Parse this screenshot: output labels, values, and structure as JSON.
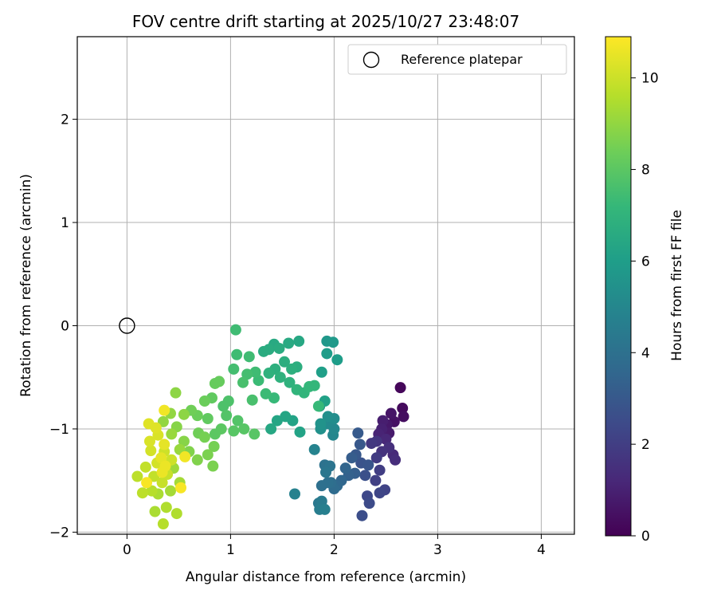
{
  "chart_data": {
    "type": "scatter",
    "title": "FOV centre drift starting at 2025/10/27 23:48:07",
    "xlabel": "Angular distance from reference (arcmin)",
    "ylabel": "Rotation from reference (arcmin)",
    "xlim": [
      -0.48,
      4.32
    ],
    "ylim": [
      -2.02,
      2.8
    ],
    "xticks": [
      0,
      1,
      2,
      3,
      4
    ],
    "xtick_labels": [
      "0",
      "1",
      "2",
      "3",
      "4"
    ],
    "yticks": [
      -2,
      -1,
      0,
      1,
      2
    ],
    "ytick_labels": [
      "−2",
      "−1",
      "0",
      "1",
      "2"
    ],
    "grid": true,
    "legend": {
      "placement": "top-right",
      "entries": [
        {
          "label": "Reference platepar",
          "marker": "open-circle"
        }
      ]
    },
    "reference_point": {
      "x": 0,
      "y": 0
    },
    "colorbar": {
      "label": "Hours from first FF file",
      "colormap": "viridis",
      "range": [
        0,
        10.9
      ],
      "ticks": [
        0,
        2,
        4,
        6,
        8,
        10
      ]
    },
    "colormap_stops": [
      "#440154",
      "#482878",
      "#3e4989",
      "#31688e",
      "#26828e",
      "#1f9e89",
      "#35b779",
      "#6ece58",
      "#b5de2b",
      "#fde725"
    ],
    "series": [
      {
        "color_by": "hours",
        "points": [
          [
            2.64,
            -0.6,
            0.2
          ],
          [
            2.66,
            -0.8,
            0.3
          ],
          [
            2.67,
            -0.88,
            0.4
          ],
          [
            2.58,
            -0.93,
            0.5
          ],
          [
            2.55,
            -0.85,
            0.6
          ],
          [
            2.51,
            -0.96,
            0.7
          ],
          [
            2.53,
            -1.04,
            0.8
          ],
          [
            2.47,
            -0.92,
            0.9
          ],
          [
            2.46,
            -1.0,
            1.0
          ],
          [
            2.43,
            -1.05,
            1.1
          ],
          [
            2.5,
            -1.1,
            1.2
          ],
          [
            2.57,
            -1.25,
            1.3
          ],
          [
            2.59,
            -1.3,
            1.4
          ],
          [
            2.53,
            -1.18,
            1.5
          ],
          [
            2.46,
            -1.22,
            1.6
          ],
          [
            2.41,
            -1.12,
            1.7
          ],
          [
            2.36,
            -1.14,
            1.8
          ],
          [
            2.41,
            -1.28,
            1.9
          ],
          [
            2.44,
            -1.4,
            2.0
          ],
          [
            2.4,
            -1.5,
            2.1
          ],
          [
            2.49,
            -1.59,
            2.2
          ],
          [
            2.44,
            -1.62,
            2.3
          ],
          [
            2.32,
            -1.65,
            2.4
          ],
          [
            2.34,
            -1.72,
            2.5
          ],
          [
            2.27,
            -1.84,
            2.6
          ],
          [
            2.3,
            -1.45,
            2.7
          ],
          [
            2.26,
            -1.33,
            2.8
          ],
          [
            2.33,
            -1.35,
            2.9
          ],
          [
            2.25,
            -1.15,
            3.0
          ],
          [
            2.21,
            -1.25,
            3.0
          ],
          [
            2.23,
            -1.04,
            3.1
          ],
          [
            2.17,
            -1.28,
            3.2
          ],
          [
            2.2,
            -1.43,
            3.3
          ],
          [
            2.14,
            -1.45,
            3.4
          ],
          [
            2.11,
            -1.38,
            3.5
          ],
          [
            2.07,
            -1.5,
            3.6
          ],
          [
            2.03,
            -1.55,
            3.7
          ],
          [
            2.0,
            -1.58,
            3.8
          ],
          [
            1.97,
            -1.52,
            3.9
          ],
          [
            1.94,
            -1.52,
            4.0
          ],
          [
            1.88,
            -1.55,
            4.0
          ],
          [
            1.91,
            -1.35,
            4.1
          ],
          [
            1.96,
            -1.36,
            4.2
          ],
          [
            1.92,
            -1.42,
            4.3
          ],
          [
            1.85,
            -1.72,
            4.4
          ],
          [
            1.88,
            -1.7,
            4.5
          ],
          [
            1.86,
            -1.78,
            4.6
          ],
          [
            1.91,
            -1.78,
            4.7
          ],
          [
            1.62,
            -1.63,
            4.8
          ],
          [
            1.81,
            -1.2,
            4.9
          ],
          [
            1.99,
            -1.06,
            5.0
          ],
          [
            2.0,
            -1.0,
            5.1
          ],
          [
            1.93,
            -0.95,
            5.2
          ],
          [
            2.0,
            -0.9,
            5.3
          ],
          [
            1.94,
            -0.88,
            5.4
          ],
          [
            1.87,
            -1.0,
            5.5
          ],
          [
            1.87,
            -0.95,
            5.6
          ],
          [
            1.86,
            -0.78,
            5.7
          ],
          [
            1.93,
            -0.15,
            5.8
          ],
          [
            1.99,
            -0.16,
            5.9
          ],
          [
            1.93,
            -0.27,
            6.0
          ],
          [
            2.03,
            -0.33,
            6.0
          ],
          [
            1.88,
            -0.45,
            6.1
          ],
          [
            1.91,
            -0.73,
            6.2
          ],
          [
            1.67,
            -1.03,
            6.3
          ],
          [
            1.6,
            -0.92,
            6.3
          ],
          [
            1.53,
            -0.88,
            6.4
          ],
          [
            1.45,
            -0.92,
            6.4
          ],
          [
            1.39,
            -1.0,
            6.5
          ],
          [
            1.66,
            -0.15,
            6.5
          ],
          [
            1.42,
            -0.18,
            6.6
          ],
          [
            1.56,
            -0.17,
            6.6
          ],
          [
            1.37,
            -0.23,
            6.7
          ],
          [
            1.32,
            -0.25,
            6.7
          ],
          [
            1.47,
            -0.22,
            6.7
          ],
          [
            1.52,
            -0.35,
            6.8
          ],
          [
            1.64,
            -0.4,
            6.8
          ],
          [
            1.59,
            -0.42,
            6.9
          ],
          [
            1.43,
            -0.42,
            6.9
          ],
          [
            1.37,
            -0.46,
            7.0
          ],
          [
            1.48,
            -0.5,
            7.0
          ],
          [
            1.57,
            -0.55,
            7.0
          ],
          [
            1.64,
            -0.62,
            7.1
          ],
          [
            1.71,
            -0.65,
            7.1
          ],
          [
            1.76,
            -0.59,
            7.2
          ],
          [
            1.81,
            -0.58,
            7.2
          ],
          [
            1.85,
            -0.78,
            7.3
          ],
          [
            1.42,
            -0.7,
            7.3
          ],
          [
            1.34,
            -0.66,
            7.4
          ],
          [
            1.27,
            -0.53,
            7.4
          ],
          [
            1.24,
            -0.45,
            7.5
          ],
          [
            1.18,
            -0.3,
            7.5
          ],
          [
            1.06,
            -0.28,
            7.5
          ],
          [
            1.16,
            -0.47,
            7.6
          ],
          [
            1.03,
            -0.42,
            7.6
          ],
          [
            1.12,
            -0.55,
            7.7
          ],
          [
            1.21,
            -0.72,
            7.7
          ],
          [
            1.05,
            -0.04,
            7.5
          ],
          [
            0.98,
            -0.73,
            7.8
          ],
          [
            0.93,
            -0.78,
            7.8
          ],
          [
            0.96,
            -0.87,
            7.9
          ],
          [
            1.07,
            -0.92,
            7.9
          ],
          [
            1.13,
            -1.0,
            8.0
          ],
          [
            1.23,
            -1.05,
            8.0
          ],
          [
            1.03,
            -1.02,
            8.0
          ],
          [
            0.91,
            -1.0,
            8.1
          ],
          [
            0.85,
            -1.05,
            8.1
          ],
          [
            0.78,
            -0.9,
            8.2
          ],
          [
            0.82,
            -0.7,
            8.2
          ],
          [
            0.85,
            -0.56,
            8.3
          ],
          [
            0.89,
            -0.54,
            8.3
          ],
          [
            0.75,
            -0.73,
            8.4
          ],
          [
            0.68,
            -0.87,
            8.4
          ],
          [
            0.62,
            -0.82,
            8.5
          ],
          [
            0.69,
            -1.04,
            8.5
          ],
          [
            0.75,
            -1.08,
            8.6
          ],
          [
            0.84,
            -1.17,
            8.6
          ],
          [
            0.78,
            -1.25,
            8.7
          ],
          [
            0.83,
            -1.36,
            8.7
          ],
          [
            0.68,
            -1.3,
            8.8
          ],
          [
            0.6,
            -1.22,
            8.8
          ],
          [
            0.55,
            -1.12,
            8.9
          ],
          [
            0.48,
            -0.98,
            8.9
          ],
          [
            0.55,
            -0.86,
            9.0
          ],
          [
            0.47,
            -0.65,
            9.0
          ],
          [
            0.42,
            -0.85,
            9.1
          ],
          [
            0.35,
            -0.93,
            9.1
          ],
          [
            0.43,
            -1.05,
            9.2
          ],
          [
            0.51,
            -1.2,
            9.2
          ],
          [
            0.45,
            -1.38,
            9.3
          ],
          [
            0.51,
            -1.52,
            9.4
          ],
          [
            0.42,
            -1.6,
            9.4
          ],
          [
            0.3,
            -1.63,
            9.5
          ],
          [
            0.27,
            -1.8,
            9.5
          ],
          [
            0.38,
            -1.76,
            9.6
          ],
          [
            0.48,
            -1.82,
            9.6
          ],
          [
            0.35,
            -1.92,
            9.7
          ],
          [
            0.24,
            -1.6,
            9.7
          ],
          [
            0.15,
            -1.62,
            9.8
          ],
          [
            0.1,
            -1.46,
            9.8
          ],
          [
            0.18,
            -1.37,
            9.9
          ],
          [
            0.26,
            -1.46,
            9.9
          ],
          [
            0.34,
            -1.52,
            10.0
          ],
          [
            0.39,
            -1.44,
            10.0
          ],
          [
            0.43,
            -1.3,
            10.1
          ],
          [
            0.36,
            -1.22,
            10.1
          ],
          [
            0.29,
            -1.33,
            10.2
          ],
          [
            0.23,
            -1.21,
            10.2
          ],
          [
            0.22,
            -1.12,
            10.3
          ],
          [
            0.3,
            -1.06,
            10.3
          ],
          [
            0.21,
            -0.95,
            10.4
          ],
          [
            0.28,
            -0.99,
            10.4
          ],
          [
            0.36,
            -1.15,
            10.5
          ],
          [
            0.33,
            -1.28,
            10.5
          ],
          [
            0.37,
            -1.36,
            10.6
          ],
          [
            0.34,
            -1.42,
            10.6
          ],
          [
            0.56,
            -1.27,
            10.7
          ],
          [
            0.36,
            -0.82,
            10.7
          ],
          [
            0.52,
            -1.57,
            10.8
          ],
          [
            0.19,
            -1.52,
            10.8
          ]
        ]
      }
    ]
  }
}
